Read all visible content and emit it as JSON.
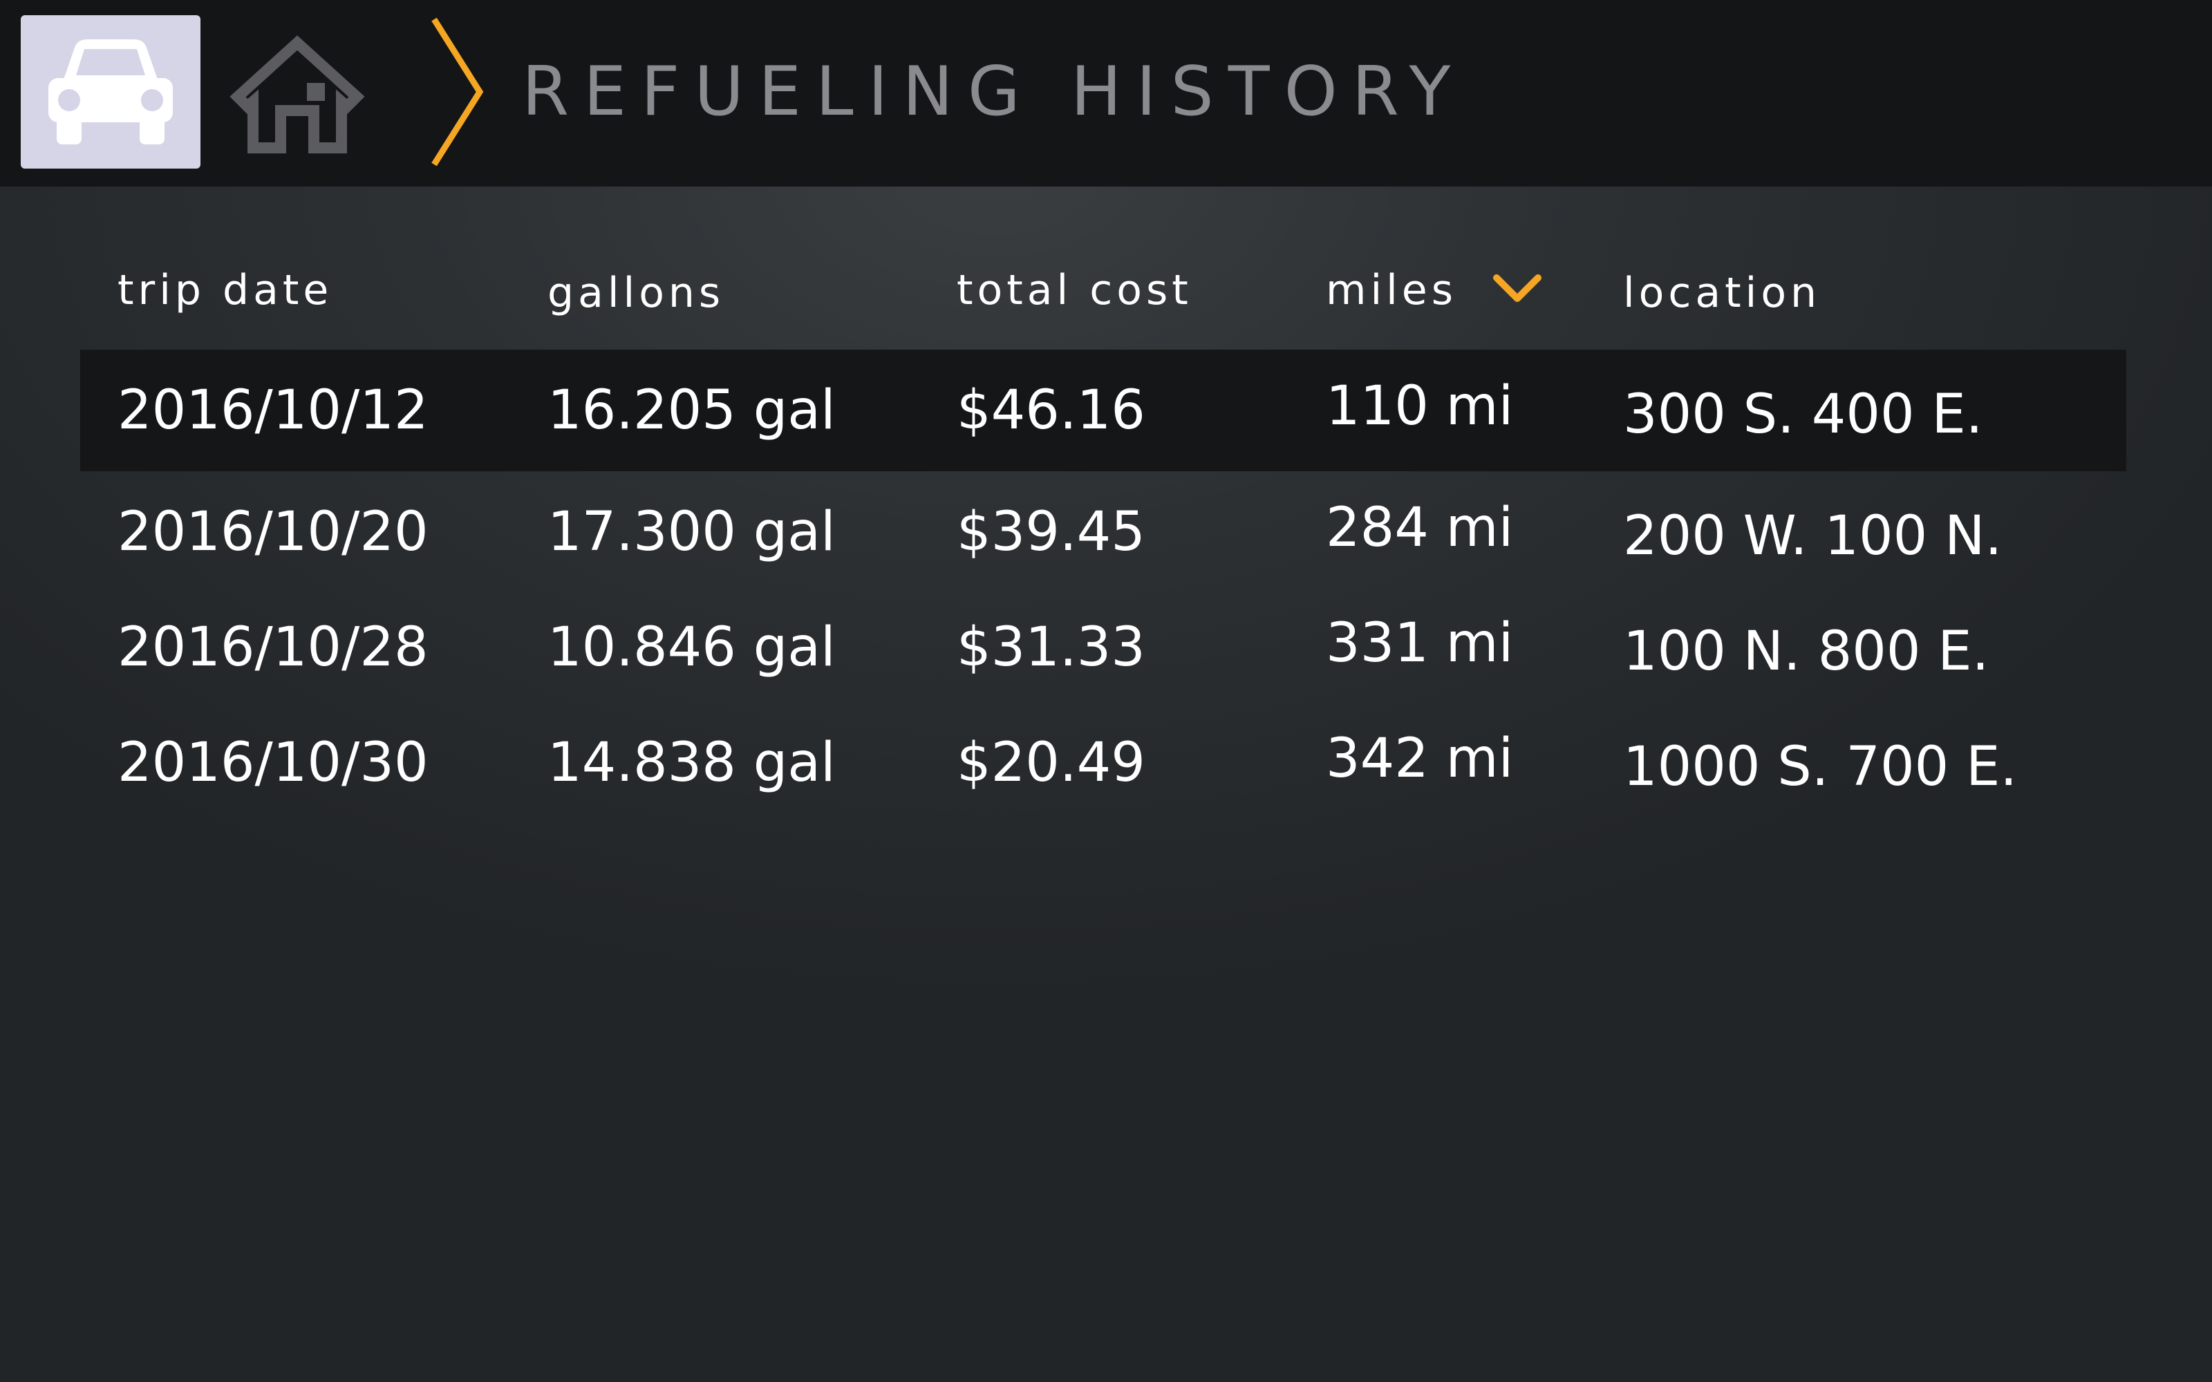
{
  "header": {
    "title": "REFUELING HISTORY",
    "car_icon": "car-icon",
    "home_icon": "home-icon",
    "separator_icon": "chevron-right-icon",
    "accent_color": "#f5a623"
  },
  "table": {
    "columns": [
      {
        "key": "date",
        "label": "trip date"
      },
      {
        "key": "gallons",
        "label": "gallons"
      },
      {
        "key": "cost",
        "label": "total cost"
      },
      {
        "key": "miles",
        "label": "miles",
        "sort": "descending",
        "sort_icon": "chevron-down-icon"
      },
      {
        "key": "location",
        "label": "location"
      }
    ],
    "selected_row": 0,
    "rows": [
      {
        "date": "2016/10/12",
        "gallons": "16.205 gal",
        "cost": "$46.16",
        "miles": "110 mi",
        "location": "300 S. 400 E."
      },
      {
        "date": "2016/10/20",
        "gallons": "17.300 gal",
        "cost": "$39.45",
        "miles": "284 mi",
        "location": "200 W. 100 N."
      },
      {
        "date": "2016/10/28",
        "gallons": "10.846 gal",
        "cost": "$31.33",
        "miles": "331 mi",
        "location": "100 N. 800 E."
      },
      {
        "date": "2016/10/30",
        "gallons": "14.838 gal",
        "cost": "$20.49",
        "miles": "342 mi",
        "location": "1000 S. 700 E."
      }
    ]
  }
}
